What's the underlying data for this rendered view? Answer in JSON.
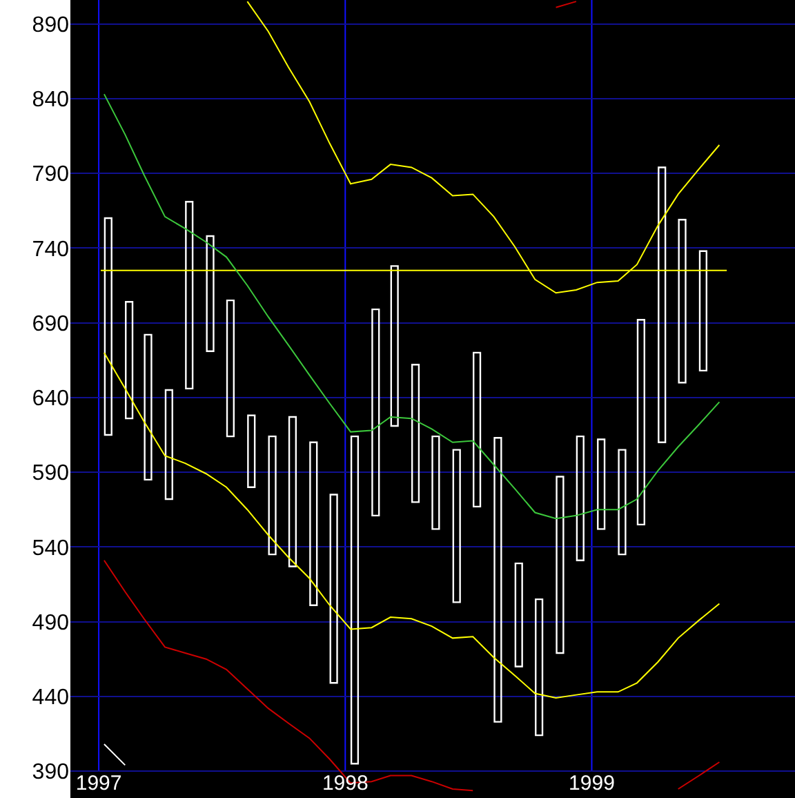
{
  "chart_data": {
    "type": "line",
    "x": [
      "1997-01-09",
      "1997-02-09",
      "1997-03-09",
      "1997-04-09",
      "1997-05-09",
      "1997-06-09",
      "1997-07-09",
      "1997-08-09",
      "1997-09-09",
      "1997-10-09",
      "1997-11-09",
      "1997-12-09",
      "1998-01-09",
      "1998-02-09",
      "1998-03-09",
      "1998-04-09",
      "1998-05-09",
      "1998-06-09",
      "1998-07-09",
      "1998-08-09",
      "1998-09-09",
      "1998-10-09",
      "1998-11-09",
      "1998-12-09",
      "1999-01-09",
      "1999-02-09",
      "1999-03-09",
      "1999-04-09",
      "1999-05-09",
      "1999-06-09",
      "1999-07-09"
    ],
    "xlim": [
      "1996-11-20",
      "1999-10-29"
    ],
    "xticks": [
      "1997",
      "1998",
      "1999"
    ],
    "ylim": [
      372,
      906
    ],
    "yticks": [
      390,
      440,
      490,
      540,
      590,
      640,
      690,
      740,
      790,
      840,
      890
    ],
    "grid": true,
    "series": [
      {
        "type": "bar",
        "color": "#ffffff",
        "x": [
          "1997-01-15",
          "1997-02-15",
          "1997-03-15",
          "1997-04-15",
          "1997-05-15",
          "1997-06-15",
          "1997-07-15",
          "1997-08-15",
          "1997-09-15",
          "1997-10-15",
          "1997-11-15",
          "1997-12-15",
          "1998-01-15",
          "1998-02-15",
          "1998-03-15",
          "1998-04-15",
          "1998-05-15",
          "1998-06-15",
          "1998-07-15",
          "1998-08-15",
          "1998-09-15",
          "1998-10-15",
          "1998-11-15",
          "1998-12-15",
          "1999-01-15",
          "1999-02-15",
          "1999-03-15",
          "1999-04-15",
          "1999-05-15",
          "1999-06-15"
        ],
        "base": [
          615,
          626,
          585,
          572,
          646,
          671,
          614,
          580,
          535,
          527,
          501,
          449,
          395,
          561,
          621,
          570,
          552,
          503,
          567,
          423,
          460,
          414,
          469,
          531,
          552,
          535,
          555,
          610,
          650,
          658
        ],
        "values": [
          145,
          78,
          97,
          73,
          125,
          77,
          91,
          48,
          79,
          100,
          109,
          126,
          219,
          138,
          107,
          92,
          62,
          102,
          103,
          190,
          69,
          91,
          118,
          83,
          60,
          70,
          137,
          184,
          109,
          80
        ]
      },
      {
        "color": "#ffff00",
        "x": [
          "1997-01-04",
          "1999-07-20"
        ],
        "values": [
          725,
          725
        ]
      },
      {
        "color": "#ffff00",
        "values": [
          null,
          null,
          null,
          null,
          null,
          null,
          null,
          905,
          885,
          861,
          838,
          810,
          783,
          786,
          796,
          794,
          787,
          775,
          776,
          761,
          741,
          719,
          710,
          712,
          717,
          718,
          729,
          755,
          776,
          793,
          809
        ]
      },
      {
        "color": "#3cc83c",
        "values": [
          843,
          816,
          789,
          761,
          753,
          744,
          734,
          715,
          694,
          675,
          655,
          636,
          617,
          618,
          627,
          626,
          619,
          610,
          611,
          595,
          579,
          563,
          559,
          561,
          565,
          565,
          572,
          591,
          607,
          622,
          637
        ]
      },
      {
        "color": "#ffff00",
        "values": [
          670,
          646,
          624,
          601,
          596,
          589,
          580,
          565,
          548,
          533,
          519,
          501,
          485,
          486,
          493,
          492,
          487,
          479,
          480,
          466,
          454,
          442,
          439,
          441,
          443,
          443,
          449,
          463,
          479,
          491,
          502
        ]
      },
      {
        "color": "#cc0000",
        "values": [
          531,
          510,
          492,
          473,
          469,
          465,
          458,
          445,
          432,
          422,
          412,
          398,
          382,
          383,
          387,
          387,
          383,
          378,
          377,
          null,
          null,
          null,
          null,
          null,
          null,
          null,
          null,
          null,
          378,
          387,
          396
        ]
      },
      {
        "color": "#cc0000",
        "values": [
          null,
          null,
          null,
          null,
          null,
          null,
          null,
          null,
          null,
          null,
          null,
          null,
          null,
          null,
          null,
          null,
          null,
          null,
          null,
          null,
          null,
          null,
          901,
          905,
          null,
          null,
          null,
          null,
          null,
          null,
          null
        ]
      },
      {
        "color": "#ffffff",
        "values": [
          408,
          394,
          null,
          null,
          null,
          null,
          null,
          null,
          null,
          null,
          null,
          null,
          null,
          null,
          null,
          null,
          null,
          null,
          null,
          null,
          null,
          null,
          null,
          null,
          null,
          null,
          null,
          null,
          null,
          null,
          null
        ]
      }
    ]
  }
}
